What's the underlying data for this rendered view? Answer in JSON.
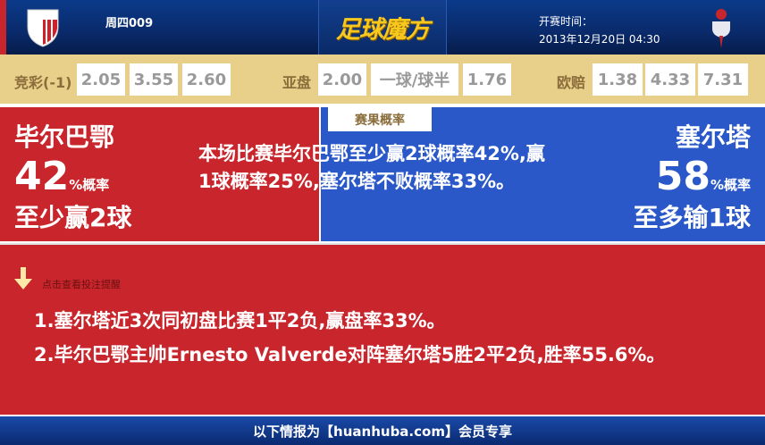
{
  "header": {
    "match_no": "周四009",
    "logo_text": "足球魔方",
    "kickoff_label": "开赛时间：",
    "kickoff_time": "2013年12月20日 04:30",
    "home_crest_text": "ATHLETIC CLUB"
  },
  "odds": {
    "jingcai": {
      "label": "竞彩(-1)",
      "values": [
        "2.05",
        "3.55",
        "2.60"
      ]
    },
    "asian": {
      "label": "亚盘",
      "values": [
        "2.00",
        "一球/球半",
        "1.76"
      ]
    },
    "euro": {
      "label": "欧赔",
      "values": [
        "1.38",
        "4.33",
        "7.31"
      ]
    }
  },
  "probability": {
    "tab": "赛果概率",
    "home": {
      "name": "毕尔巴鄂",
      "pct": "42",
      "pct_suffix": "%概率",
      "result": "至少赢2球",
      "color": "#c8262c"
    },
    "away": {
      "name": "塞尔塔",
      "pct": "58",
      "pct_suffix": "%概率",
      "result": "至多输1球",
      "color": "#2a58c8"
    },
    "description": "本场比赛毕尔巴鄂至少赢2球概率42%,赢1球概率25%,塞尔塔不败概率33%。"
  },
  "tips": {
    "label": "点击查看投注提醒",
    "items": [
      "1.塞尔塔近3次同初盘比赛1平2负,赢盘率33%。",
      "2.毕尔巴鄂主帅Ernesto Valverde对阵塞尔塔5胜2平2负,胜率55.6%。"
    ]
  },
  "footer": {
    "text": "以下情报为【huanhuba.com】会员专享"
  }
}
